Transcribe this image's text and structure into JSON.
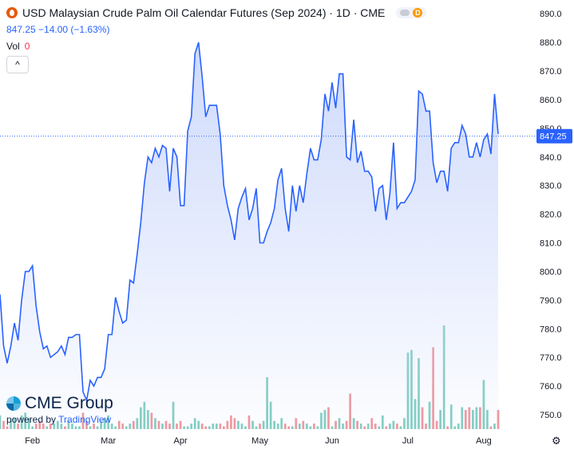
{
  "header": {
    "title": "USD Malaysian Crude Palm Oil Calendar Futures (Sep 2024) · 1D · CME",
    "badge": "D",
    "price_change": "847.25  −14.00 (−1.63%)",
    "volume_label": "Vol",
    "volume_value": "0",
    "collapse_glyph": "^"
  },
  "branding": {
    "logo_text": "CME Group",
    "powered_by": "powered by",
    "tradingview": "TradingView"
  },
  "colors": {
    "line": "#2962ff",
    "area_top": "#c9d6fb",
    "volume_up": "#7fcdc0",
    "volume_down": "#f0959b",
    "last_price_bg": "#2962ff"
  },
  "chart_data": {
    "type": "area",
    "ylim": [
      745,
      892
    ],
    "y_ticks": [
      750,
      760,
      770,
      780,
      790,
      800,
      810,
      820,
      830,
      840,
      850,
      860,
      870,
      880,
      890
    ],
    "x_ticks": [
      "Feb",
      "Mar",
      "Apr",
      "May",
      "Jun",
      "Jul",
      "Aug"
    ],
    "last_price": "847.25",
    "series": [
      {
        "values": [
          792,
          774,
          768,
          774,
          782,
          776,
          790,
          800,
          800,
          802,
          788,
          779,
          773,
          774,
          770,
          771,
          772,
          774,
          771,
          777,
          777,
          778,
          778,
          758,
          755,
          762,
          760,
          763,
          763,
          766,
          778,
          778,
          791,
          786,
          782,
          783,
          797,
          796,
          806,
          817,
          831,
          840,
          838,
          843,
          840,
          844,
          843,
          828,
          843,
          840,
          823,
          823,
          849,
          854,
          876,
          880,
          868,
          854,
          858,
          858,
          858,
          848,
          830,
          823,
          818,
          811,
          822,
          826,
          829,
          818,
          822,
          829,
          810,
          810,
          814,
          817,
          822,
          832,
          836,
          822,
          814,
          830,
          821,
          830,
          824,
          834,
          843,
          839,
          839,
          846,
          862,
          856,
          866,
          857,
          869,
          869,
          840,
          839,
          853,
          838,
          842,
          835,
          835,
          833,
          821,
          829,
          830,
          818,
          827,
          845,
          822,
          824,
          824,
          826,
          828,
          832,
          863,
          862,
          856,
          856,
          838,
          831,
          835,
          835,
          828,
          843,
          845,
          845,
          851,
          848,
          840,
          840,
          845,
          840,
          846,
          848,
          841,
          862,
          848
        ],
        "volume": [
          5,
          3,
          1,
          3,
          4,
          2,
          5,
          6,
          4,
          1,
          2,
          3,
          2,
          1,
          2,
          2,
          3,
          2,
          1,
          3,
          2,
          1,
          1,
          6,
          3,
          1,
          2,
          1,
          3,
          4,
          5,
          2,
          1,
          3,
          2,
          1,
          2,
          3,
          4,
          8,
          10,
          7,
          6,
          4,
          3,
          2,
          3,
          2,
          10,
          2,
          3,
          1,
          1,
          2,
          4,
          3,
          2,
          1,
          1,
          2,
          2,
          2,
          1,
          3,
          5,
          4,
          3,
          2,
          1,
          5,
          3,
          1,
          2,
          3,
          19,
          10,
          3,
          2,
          4,
          2,
          1,
          1,
          4,
          2,
          3,
          2,
          1,
          2,
          1,
          6,
          7,
          8,
          1,
          3,
          4,
          2,
          3,
          13,
          4,
          3,
          2,
          1,
          2,
          4,
          2,
          1,
          5,
          1,
          2,
          3,
          2,
          1,
          4,
          28,
          29,
          11,
          26,
          8,
          2,
          10,
          30,
          3,
          7,
          38,
          1,
          9,
          1,
          2,
          8,
          7,
          8,
          7,
          8,
          8,
          18,
          7,
          1,
          2,
          7
        ]
      }
    ]
  }
}
